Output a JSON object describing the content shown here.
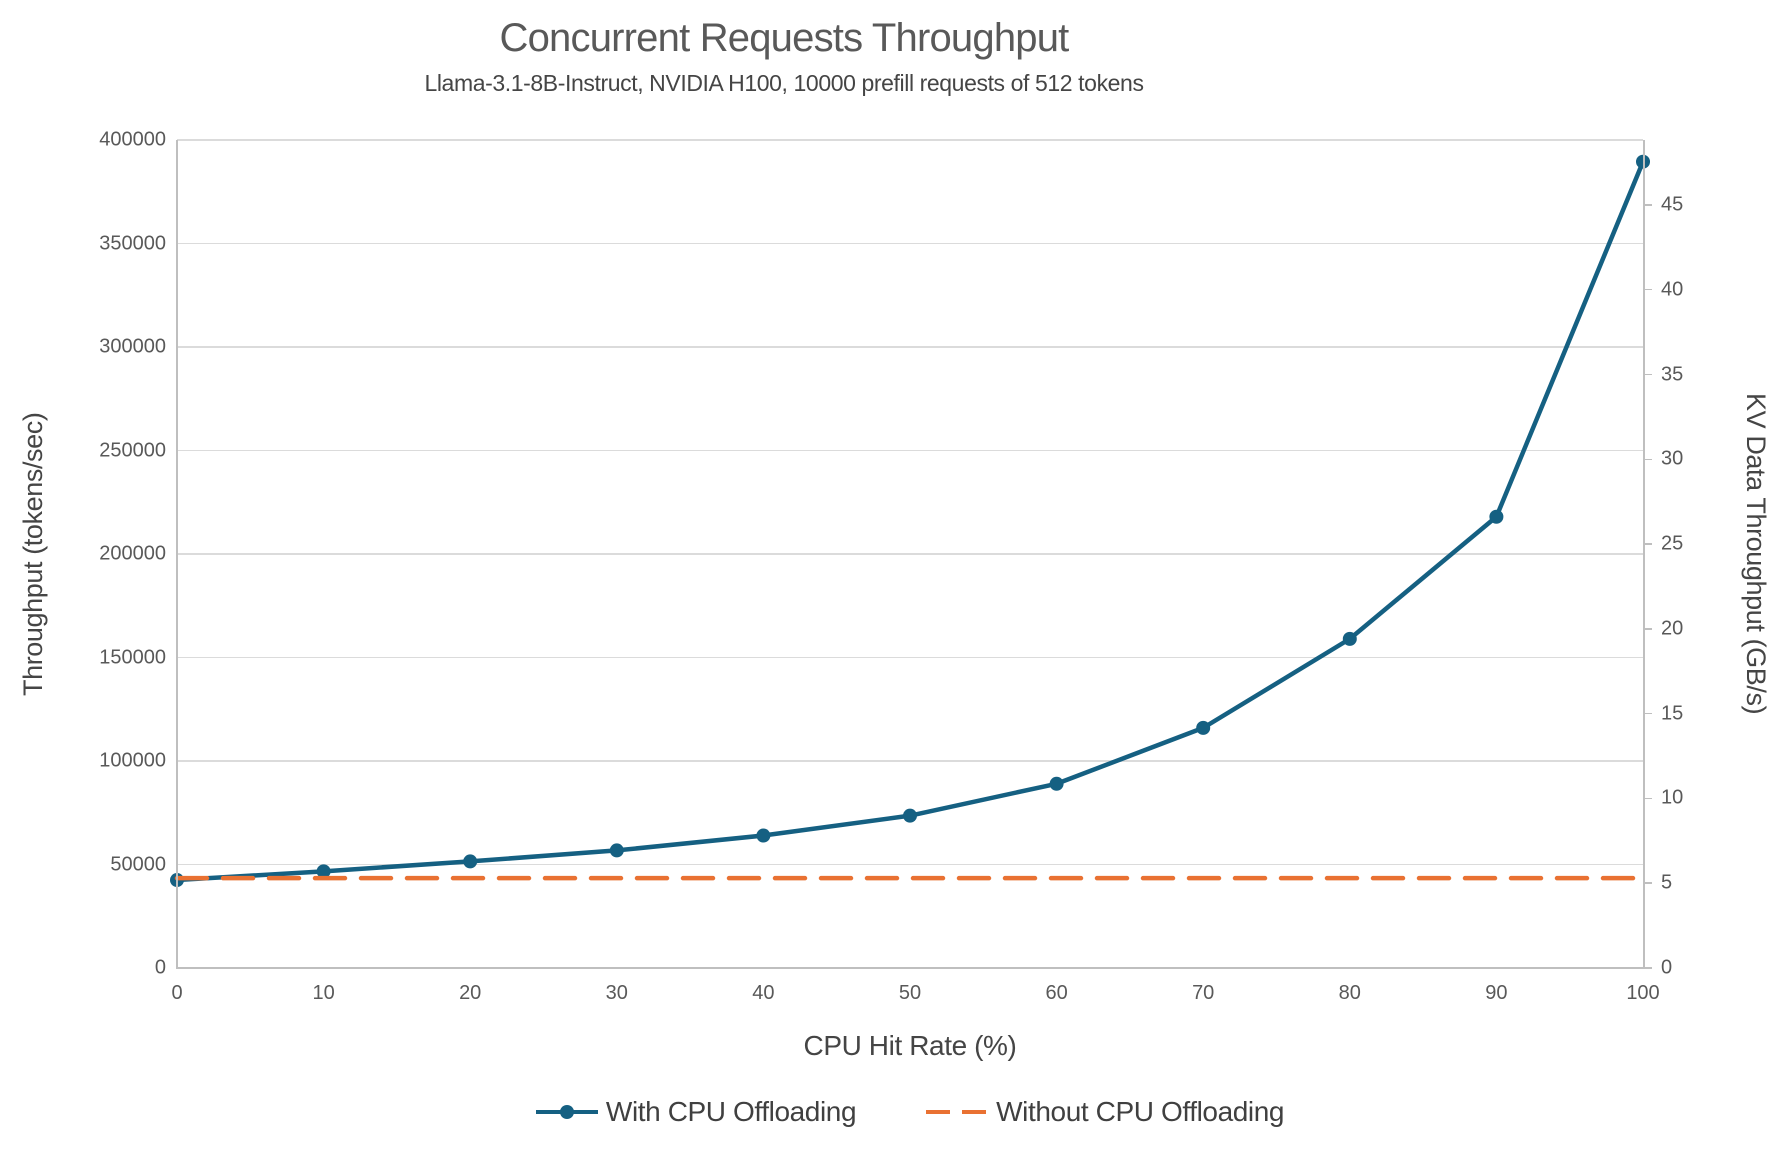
{
  "chart": {
    "title": "Concurrent Requests Throughput",
    "subtitle": "Llama-3.1-8B-Instruct, NVIDIA H100, 10000 prefill requests of 512 tokens"
  },
  "chart_data": {
    "type": "line",
    "title": "Concurrent Requests Throughput",
    "subtitle": "Llama-3.1-8B-Instruct, NVIDIA H100, 10000 prefill requests of 512 tokens",
    "xlabel": "CPU Hit Rate (%)",
    "ylabel_left": "Throughput (tokens/sec)",
    "ylabel_right": "KV Data Throughput (GB/s)",
    "x": [
      0,
      10,
      20,
      30,
      40,
      50,
      60,
      70,
      80,
      90,
      100
    ],
    "x_ticks": [
      "0",
      "10",
      "20",
      "30",
      "40",
      "50",
      "60",
      "70",
      "80",
      "90",
      "100"
    ],
    "xlim": [
      0,
      100
    ],
    "y_left": {
      "min": 0,
      "max": 400000,
      "ticks": [
        0,
        50000,
        100000,
        150000,
        200000,
        250000,
        300000,
        350000,
        400000
      ]
    },
    "y_right": {
      "min": 0,
      "max": 48.83,
      "ticks": [
        0,
        5,
        10,
        15,
        20,
        25,
        30,
        35,
        40,
        45
      ]
    },
    "grid": true,
    "legend_position": "bottom",
    "series": [
      {
        "name": "With CPU Offloading",
        "axis": "left",
        "style": "solid",
        "markers": true,
        "color": "#156082",
        "values": [
          42500,
          46700,
          51500,
          56800,
          64000,
          73600,
          89000,
          116000,
          159000,
          218000,
          389500
        ]
      },
      {
        "name": "Without CPU Offloading",
        "axis": "left",
        "style": "dashed",
        "markers": false,
        "color": "#E97132",
        "values": [
          43400,
          43400,
          43400,
          43400,
          43400,
          43400,
          43400,
          43400,
          43400,
          43400,
          43400
        ]
      }
    ]
  }
}
